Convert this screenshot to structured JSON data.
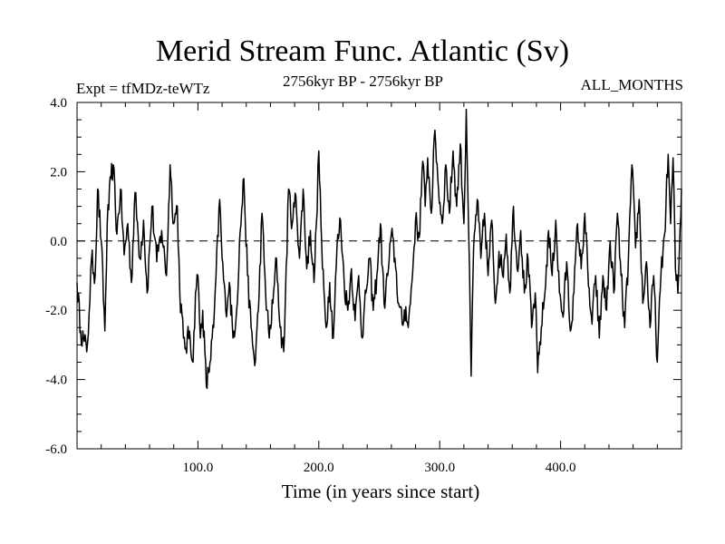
{
  "chart_data": {
    "type": "line",
    "title": "Merid Stream Func. Atlantic (Sv)",
    "subtitle": "2756kyr BP - 2756kyr BP",
    "expt_label": "Expt = tfMDz-teWTz",
    "period_label": "ALL_MONTHS",
    "xlabel": "Time (in years since start)",
    "ylabel": "",
    "xlim": [
      0,
      500
    ],
    "ylim": [
      -6.0,
      4.0
    ],
    "x_ticks": [
      100,
      200,
      300,
      400
    ],
    "x_tick_labels": [
      "100.0",
      "200.0",
      "300.0",
      "400.0"
    ],
    "y_ticks": [
      -6,
      -4,
      -2,
      0,
      2,
      4
    ],
    "y_tick_labels": [
      "-6.0",
      "-4.0",
      "-2.0",
      "0.0",
      "2.0",
      "4.0"
    ],
    "reference_line": 0.0,
    "anchors": [
      [
        0,
        -1.2
      ],
      [
        3,
        -2.6
      ],
      [
        6,
        -2.9
      ],
      [
        8,
        -3.2
      ],
      [
        10,
        -2.1
      ],
      [
        12,
        -0.5
      ],
      [
        15,
        -1.0
      ],
      [
        17,
        1.5
      ],
      [
        20,
        0.0
      ],
      [
        23,
        -2.6
      ],
      [
        25,
        0.5
      ],
      [
        28,
        1.8
      ],
      [
        30,
        2.2
      ],
      [
        33,
        0.2
      ],
      [
        36,
        1.5
      ],
      [
        39,
        -0.4
      ],
      [
        42,
        0.5
      ],
      [
        45,
        -1.2
      ],
      [
        48,
        1.4
      ],
      [
        52,
        -0.5
      ],
      [
        55,
        0.6
      ],
      [
        58,
        -1.5
      ],
      [
        62,
        1.0
      ],
      [
        66,
        -0.6
      ],
      [
        70,
        0.3
      ],
      [
        74,
        -1.0
      ],
      [
        77,
        2.2
      ],
      [
        80,
        0.5
      ],
      [
        83,
        1.0
      ],
      [
        85,
        -1.5
      ],
      [
        88,
        -2.8
      ],
      [
        90,
        -3.1
      ],
      [
        93,
        -2.6
      ],
      [
        96,
        -3.5
      ],
      [
        98,
        -1.5
      ],
      [
        100,
        -1.0
      ],
      [
        102,
        -2.8
      ],
      [
        104,
        -2.0
      ],
      [
        107,
        -4.2
      ],
      [
        110,
        -3.5
      ],
      [
        113,
        -2.5
      ],
      [
        115,
        -1.0
      ],
      [
        118,
        1.2
      ],
      [
        120,
        -0.5
      ],
      [
        123,
        -2.0
      ],
      [
        126,
        -1.2
      ],
      [
        129,
        -2.8
      ],
      [
        132,
        -2.0
      ],
      [
        135,
        0.3
      ],
      [
        138,
        1.8
      ],
      [
        141,
        -1.0
      ],
      [
        144,
        -2.5
      ],
      [
        147,
        -3.6
      ],
      [
        150,
        -2.0
      ],
      [
        153,
        0.8
      ],
      [
        156,
        -1.5
      ],
      [
        159,
        -2.8
      ],
      [
        162,
        -1.8
      ],
      [
        165,
        -0.5
      ],
      [
        168,
        -2.5
      ],
      [
        171,
        -3.2
      ],
      [
        175,
        1.5
      ],
      [
        178,
        0.5
      ],
      [
        181,
        1.3
      ],
      [
        184,
        -0.5
      ],
      [
        187,
        1.5
      ],
      [
        190,
        -0.8
      ],
      [
        193,
        0.3
      ],
      [
        196,
        -1.2
      ],
      [
        198,
        0.5
      ],
      [
        200,
        2.6
      ],
      [
        203,
        -0.8
      ],
      [
        206,
        -2.5
      ],
      [
        209,
        -1.2
      ],
      [
        212,
        -2.8
      ],
      [
        215,
        -0.2
      ],
      [
        218,
        0.6
      ],
      [
        221,
        -1.2
      ],
      [
        224,
        -2.0
      ],
      [
        227,
        -0.8
      ],
      [
        230,
        -2.3
      ],
      [
        233,
        -1.0
      ],
      [
        236,
        -2.8
      ],
      [
        239,
        -1.5
      ],
      [
        242,
        -0.5
      ],
      [
        245,
        -2.0
      ],
      [
        248,
        -1.0
      ],
      [
        251,
        0.5
      ],
      [
        254,
        -1.8
      ],
      [
        257,
        -1.0
      ],
      [
        260,
        0.2
      ],
      [
        263,
        -0.5
      ],
      [
        266,
        -1.8
      ],
      [
        269,
        -2.4
      ],
      [
        272,
        -1.9
      ],
      [
        274,
        -2.5
      ],
      [
        277,
        -1.2
      ],
      [
        280,
        0.6
      ],
      [
        283,
        0.1
      ],
      [
        286,
        2.3
      ],
      [
        288,
        1.0
      ],
      [
        290,
        2.4
      ],
      [
        293,
        0.8
      ],
      [
        296,
        3.2
      ],
      [
        299,
        1.5
      ],
      [
        302,
        0.5
      ],
      [
        305,
        2.2
      ],
      [
        308,
        0.8
      ],
      [
        311,
        2.6
      ],
      [
        314,
        1.0
      ],
      [
        317,
        2.8
      ],
      [
        320,
        0.5
      ],
      [
        322,
        3.8
      ],
      [
        324,
        0.2
      ],
      [
        326,
        -3.9
      ],
      [
        328,
        -0.2
      ],
      [
        331,
        1.2
      ],
      [
        334,
        -0.5
      ],
      [
        337,
        0.8
      ],
      [
        340,
        -1.0
      ],
      [
        343,
        0.6
      ],
      [
        346,
        -1.8
      ],
      [
        349,
        -0.3
      ],
      [
        352,
        -1.0
      ],
      [
        355,
        0.2
      ],
      [
        358,
        -1.5
      ],
      [
        361,
        1.0
      ],
      [
        364,
        -0.8
      ],
      [
        367,
        0.3
      ],
      [
        370,
        -1.5
      ],
      [
        373,
        -0.5
      ],
      [
        376,
        -2.5
      ],
      [
        379,
        -1.5
      ],
      [
        381,
        -3.8
      ],
      [
        384,
        -2.5
      ],
      [
        387,
        -1.5
      ],
      [
        390,
        0.3
      ],
      [
        393,
        -1.0
      ],
      [
        396,
        0.6
      ],
      [
        399,
        -1.5
      ],
      [
        402,
        -2.2
      ],
      [
        405,
        -0.6
      ],
      [
        408,
        -2.6
      ],
      [
        411,
        -1.5
      ],
      [
        414,
        0.5
      ],
      [
        417,
        -0.8
      ],
      [
        420,
        0.8
      ],
      [
        423,
        -1.3
      ],
      [
        426,
        -2.4
      ],
      [
        429,
        -1.0
      ],
      [
        432,
        -2.8
      ],
      [
        435,
        -1.0
      ],
      [
        438,
        -2.0
      ],
      [
        441,
        0.0
      ],
      [
        444,
        -1.5
      ],
      [
        447,
        0.8
      ],
      [
        450,
        -1.0
      ],
      [
        453,
        -2.5
      ],
      [
        456,
        -0.6
      ],
      [
        459,
        2.2
      ],
      [
        462,
        -0.2
      ],
      [
        465,
        1.2
      ],
      [
        468,
        -1.8
      ],
      [
        471,
        -0.6
      ],
      [
        474,
        -2.5
      ],
      [
        477,
        -1.0
      ],
      [
        480,
        -3.5
      ],
      [
        483,
        -1.0
      ],
      [
        486,
        0.2
      ],
      [
        489,
        2.5
      ],
      [
        491,
        0.5
      ],
      [
        493,
        2.4
      ],
      [
        495,
        -0.8
      ],
      [
        497,
        -1.5
      ],
      [
        500,
        1.5
      ]
    ],
    "series": [
      {
        "name": "Merid Stream Func. Atlantic",
        "color": "#000000"
      }
    ],
    "grid": false,
    "legend": "none"
  }
}
